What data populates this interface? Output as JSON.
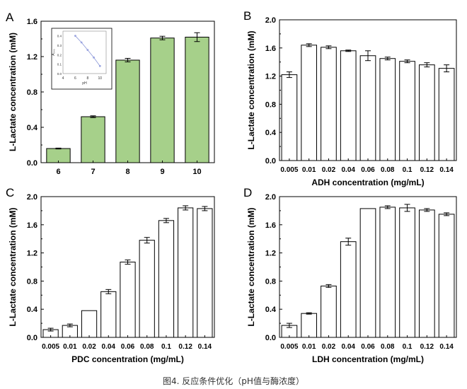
{
  "caption": "图4. 反应条件优化（pH值与酶浓度）",
  "colors": {
    "green_bar": "#a6d08a",
    "white_bar": "#ffffff",
    "axis": "#000000",
    "inset_line": "#8a96d6",
    "inset_marker": "#9aa4e0"
  },
  "chart_data": [
    {
      "panel": "A",
      "type": "bar",
      "title": "",
      "xlabel": "",
      "ylabel": "L-Lactate concentration (mM)",
      "categories": [
        "6",
        "7",
        "8",
        "9",
        "10"
      ],
      "values": [
        0.16,
        0.52,
        1.16,
        1.41,
        1.42
      ],
      "errors": [
        0.005,
        0.01,
        0.02,
        0.02,
        0.05
      ],
      "ylim": [
        0,
        1.6
      ],
      "yticks": [
        "0.0",
        "0.4",
        "0.8",
        "1.2",
        "1.6"
      ],
      "bar_color": "#a6d08a",
      "inset": {
        "type": "line",
        "xlabel": "pH",
        "ylabel": "A₃₄₀",
        "x": [
          6,
          7,
          8,
          9,
          10
        ],
        "y": [
          0.4,
          0.33,
          0.25,
          0.17,
          0.08
        ],
        "xticks": [
          "4",
          "6",
          "8",
          "10"
        ],
        "yticks": [
          "0.0",
          "0.1",
          "0.2",
          "0.3",
          "0.4"
        ]
      }
    },
    {
      "panel": "B",
      "type": "bar",
      "title": "",
      "xlabel": "ADH concentration (mg/mL)",
      "ylabel": "L-Lactate concentration (mM)",
      "categories": [
        "0.005",
        "0.01",
        "0.02",
        "0.04",
        "0.06",
        "0.08",
        "0.1",
        "0.12",
        "0.14"
      ],
      "values": [
        1.22,
        1.64,
        1.61,
        1.56,
        1.49,
        1.45,
        1.41,
        1.36,
        1.31
      ],
      "errors": [
        0.04,
        0.02,
        0.02,
        0.01,
        0.07,
        0.02,
        0.02,
        0.03,
        0.05
      ],
      "ylim": [
        0,
        2.0
      ],
      "yticks": [
        "0.0",
        "0.4",
        "0.8",
        "1.2",
        "1.6",
        "2.0"
      ],
      "bar_color": "#ffffff"
    },
    {
      "panel": "C",
      "type": "bar",
      "title": "",
      "xlabel": "PDC concentration (mg/mL)",
      "ylabel": "L-Lactate concentration (mM)",
      "categories": [
        "0.005",
        "0.01",
        "0.02",
        "0.04",
        "0.06",
        "0.08",
        "0.1",
        "0.12",
        "0.14"
      ],
      "values": [
        0.11,
        0.17,
        0.38,
        0.65,
        1.07,
        1.38,
        1.66,
        1.84,
        1.83
      ],
      "errors": [
        0.02,
        0.02,
        0,
        0.03,
        0.03,
        0.04,
        0.03,
        0.03,
        0.03
      ],
      "ylim": [
        0,
        2.0
      ],
      "yticks": [
        "0.0",
        "0.4",
        "0.8",
        "1.2",
        "1.6",
        "2.0"
      ],
      "bar_color": "#ffffff"
    },
    {
      "panel": "D",
      "type": "bar",
      "title": "",
      "xlabel": "LDH concentration (mg/mL)",
      "ylabel": "L-Lactate concentration (mM)",
      "categories": [
        "0.005",
        "0.01",
        "0.02",
        "0.04",
        "0.06",
        "0.08",
        "0.1",
        "0.12",
        "0.14"
      ],
      "values": [
        0.17,
        0.34,
        0.73,
        1.36,
        1.83,
        1.85,
        1.84,
        1.81,
        1.75
      ],
      "errors": [
        0.03,
        0.01,
        0.02,
        0.05,
        0,
        0.02,
        0.05,
        0.02,
        0.02
      ],
      "ylim": [
        0,
        2.0
      ],
      "yticks": [
        "0.0",
        "0.4",
        "0.8",
        "1.2",
        "1.6",
        "2.0"
      ],
      "bar_color": "#ffffff"
    }
  ]
}
